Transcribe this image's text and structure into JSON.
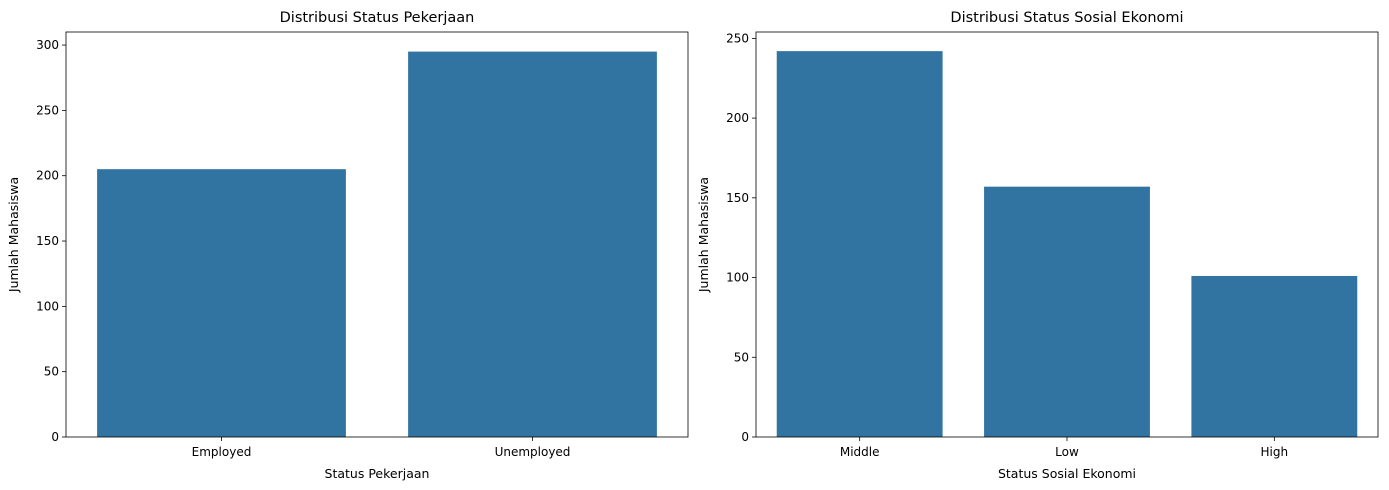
{
  "style": {
    "bar_color": "#3274a1",
    "axis_color": "#000000",
    "background": "#ffffff"
  },
  "chart_data": [
    {
      "type": "bar",
      "title": "Distribusi Status Pekerjaan",
      "xlabel": "Status Pekerjaan",
      "ylabel": "Jumlah Mahasiswa",
      "categories": [
        "Employed",
        "Unemployed"
      ],
      "values": [
        205,
        295
      ],
      "ylim": [
        0,
        310
      ],
      "yticks": [
        0,
        50,
        100,
        150,
        200,
        250,
        300
      ],
      "grid": false,
      "legend": "none"
    },
    {
      "type": "bar",
      "title": "Distribusi Status Sosial Ekonomi",
      "xlabel": "Status Sosial Ekonomi",
      "ylabel": "Jumlah Mahasiswa",
      "categories": [
        "Middle",
        "Low",
        "High"
      ],
      "values": [
        242,
        157,
        101
      ],
      "ylim": [
        0,
        254
      ],
      "yticks": [
        0,
        50,
        100,
        150,
        200,
        250
      ],
      "grid": false,
      "legend": "none"
    }
  ]
}
